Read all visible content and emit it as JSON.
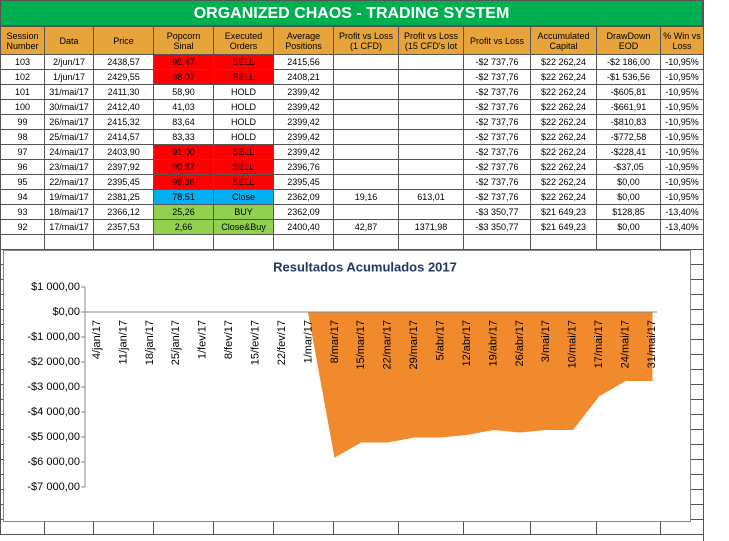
{
  "header": {
    "title": "ORGANIZED CHAOS - TRADING SYSTEM"
  },
  "table": {
    "columns": [
      "Session Number",
      "Data",
      "Price",
      "Popcorn Sinal",
      "Executed Orders",
      "Average Positions",
      "Profit vs Loss (1 CFD)",
      "Profit vs Loss (15 CFD's lot",
      "Profit vs Loss",
      "Accumulated Capital",
      "DrawDown EOD",
      "% Win vs Loss"
    ],
    "rows": [
      [
        "103",
        "2/jun/17",
        "2438,57",
        "95,47",
        "SELL",
        "2415,56",
        null,
        null,
        "-$2 737,76",
        "$22 262,24",
        "-$2 186,00",
        "-10,95%"
      ],
      [
        "102",
        "1/jun/17",
        "2429,55",
        "98,07",
        "SELL",
        "2408,21",
        null,
        null,
        "-$2 737,76",
        "$22 262,24",
        "-$1 536,56",
        "-10,95%"
      ],
      [
        "101",
        "31/mai/17",
        "2411,30",
        "58,90",
        "HOLD",
        "2399,42",
        null,
        null,
        "-$2 737,76",
        "$22 262,24",
        "-$605,81",
        "-10,95%"
      ],
      [
        "100",
        "30/mai/17",
        "2412,40",
        "41,03",
        "HOLD",
        "2399,42",
        null,
        null,
        "-$2 737,76",
        "$22 262,24",
        "-$661,91",
        "-10,95%"
      ],
      [
        "99",
        "26/mai/17",
        "2415,32",
        "83,64",
        "HOLD",
        "2399,42",
        null,
        null,
        "-$2 737,76",
        "$22 262,24",
        "-$810,83",
        "-10,95%"
      ],
      [
        "98",
        "25/mai/17",
        "2414,57",
        "83,33",
        "HOLD",
        "2399,42",
        null,
        null,
        "-$2 737,76",
        "$22 262,24",
        "-$772,58",
        "-10,95%"
      ],
      [
        "97",
        "24/mai/17",
        "2403,90",
        "91,00",
        "SELL",
        "2399,42",
        null,
        null,
        "-$2 737,76",
        "$22 262,24",
        "-$228,41",
        "-10,95%"
      ],
      [
        "96",
        "23/mai/17",
        "2397,92",
        "90,37",
        "SELL",
        "2396,76",
        null,
        null,
        "-$2 737,76",
        "$22 262,24",
        "-$37,05",
        "-10,95%"
      ],
      [
        "95",
        "22/mai/17",
        "2395,45",
        "99,36",
        "SELL",
        "2395,45",
        null,
        null,
        "-$2 737,76",
        "$22 262,24",
        "$0,00",
        "-10,95%"
      ],
      [
        "94",
        "19/mai/17",
        "2381,25",
        "78,51",
        "Close",
        "2362,09",
        "19,16",
        "613,01",
        "-$2 737,76",
        "$22 262,24",
        "$0,00",
        "-10,95%"
      ],
      [
        "93",
        "18/mai/17",
        "2366,12",
        "25,26",
        "BUY",
        "2362,09",
        null,
        null,
        "-$3 350,77",
        "$21 649,23",
        "$128,85",
        "-13,40%"
      ],
      [
        "92",
        "17/mai/17",
        "2357,53",
        "2,66",
        "Close&Buy",
        "2400,40",
        "42,87",
        "1371,98",
        "-$3 350,77",
        "$21 649,23",
        "$0,00",
        "-13,40%"
      ]
    ],
    "signal_colors": [
      "#ff0000",
      "#ff0000",
      null,
      null,
      null,
      null,
      "#ff0000",
      "#ff0000",
      "#ff0000",
      "#00b0f0",
      "#92d050",
      "#92d050"
    ]
  },
  "chart_data": {
    "type": "area",
    "title": "Resultados Acumulados 2017",
    "color": "#f08a2c",
    "categories": [
      "4/jan/17",
      "11/jan/17",
      "18/jan/17",
      "25/jan/17",
      "1/fev/17",
      "8/fev/17",
      "15/fev/17",
      "22/fev/17",
      "1/mar/17",
      "8/mar/17",
      "15/mar/17",
      "22/mar/17",
      "29/mar/17",
      "5/abr/17",
      "12/abr/17",
      "19/abr/17",
      "26/abr/17",
      "3/mai/17",
      "10/mai/17",
      "17/mai/17",
      "24/mai/17",
      "31/mai/17"
    ],
    "values": [
      0,
      0,
      0,
      0,
      0,
      0,
      0,
      0,
      0,
      -5800,
      -5200,
      -5200,
      -5000,
      -5000,
      -4900,
      -4700,
      -4800,
      -4700,
      -4700,
      -3350,
      -2740,
      -2740
    ],
    "ylim": [
      -7000,
      1000
    ],
    "yticks": [
      {
        "value": 1000,
        "label": "$1 000,00"
      },
      {
        "value": 0,
        "label": "$0,00"
      },
      {
        "value": -1000,
        "label": "-$1 000,00"
      },
      {
        "value": -2000,
        "label": "-$2 000,00"
      },
      {
        "value": -3000,
        "label": "-$3 000,00"
      },
      {
        "value": -4000,
        "label": "-$4 000,00"
      },
      {
        "value": -5000,
        "label": "-$5 000,00"
      },
      {
        "value": -6000,
        "label": "-$6 000,00"
      },
      {
        "value": -7000,
        "label": "-$7 000,00"
      }
    ]
  }
}
